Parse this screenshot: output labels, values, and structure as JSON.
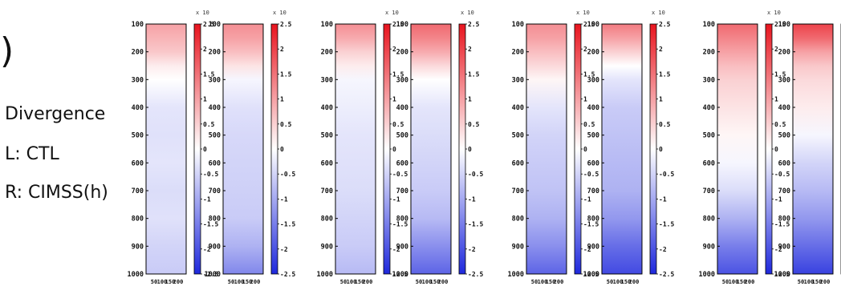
{
  "labels": {
    "panel_letter_fragment": ")",
    "line1": "Divergence",
    "line2": "L: CTL",
    "line3": "R: CIMSS(h)"
  },
  "chart_data": {
    "type": "heatmap",
    "description_axes": {
      "y_ticks": [
        "100",
        "200",
        "300",
        "400",
        "500",
        "600",
        "700",
        "800",
        "900",
        "1000"
      ],
      "x_ticks": [
        "50",
        "100",
        "150",
        "200"
      ],
      "ylim": [
        1000,
        100
      ]
    },
    "colorbar": {
      "ticks": [
        "2.5",
        "2",
        "1.5",
        "1",
        "0.5",
        "0",
        "-0.5",
        "-1",
        "-1.5",
        "-2",
        "-2.5"
      ],
      "exponent_label": "x 10",
      "range": [
        -2.5,
        2.5
      ],
      "colors": {
        "positive": "#e8141e",
        "neutral": "#ffffff",
        "negative": "#1e28dc"
      }
    },
    "panels": [
      {
        "name": "CTL",
        "profile": [
          [
            100,
            1.0
          ],
          [
            150,
            0.8
          ],
          [
            200,
            0.6
          ],
          [
            250,
            0.2
          ],
          [
            300,
            0.0
          ],
          [
            400,
            -0.3
          ],
          [
            500,
            -0.35
          ],
          [
            600,
            -0.3
          ],
          [
            700,
            -0.4
          ],
          [
            800,
            -0.35
          ],
          [
            900,
            -0.5
          ],
          [
            1000,
            -0.6
          ]
        ]
      },
      {
        "name": "CIMSS(h)",
        "profile": [
          [
            100,
            1.2
          ],
          [
            150,
            1.0
          ],
          [
            200,
            0.7
          ],
          [
            250,
            0.3
          ],
          [
            300,
            -0.1
          ],
          [
            400,
            -0.35
          ],
          [
            500,
            -0.45
          ],
          [
            600,
            -0.5
          ],
          [
            700,
            -0.55
          ],
          [
            800,
            -0.6
          ],
          [
            900,
            -0.9
          ],
          [
            1000,
            -1.4
          ]
        ]
      },
      {
        "name": "CTL",
        "profile": [
          [
            100,
            1.2
          ],
          [
            150,
            0.9
          ],
          [
            200,
            0.5
          ],
          [
            250,
            0.2
          ],
          [
            300,
            -0.1
          ],
          [
            400,
            -0.2
          ],
          [
            500,
            -0.3
          ],
          [
            600,
            -0.35
          ],
          [
            700,
            -0.4
          ],
          [
            800,
            -0.5
          ],
          [
            900,
            -0.6
          ],
          [
            1000,
            -0.8
          ]
        ]
      },
      {
        "name": "CIMSS(h)",
        "profile": [
          [
            100,
            1.6
          ],
          [
            150,
            1.3
          ],
          [
            200,
            0.9
          ],
          [
            250,
            0.4
          ],
          [
            300,
            0.0
          ],
          [
            400,
            -0.3
          ],
          [
            500,
            -0.4
          ],
          [
            600,
            -0.5
          ],
          [
            700,
            -0.6
          ],
          [
            800,
            -0.8
          ],
          [
            900,
            -1.3
          ],
          [
            1000,
            -1.8
          ]
        ]
      },
      {
        "name": "CTL",
        "profile": [
          [
            100,
            1.2
          ],
          [
            150,
            1.0
          ],
          [
            200,
            0.7
          ],
          [
            250,
            0.4
          ],
          [
            300,
            0.1
          ],
          [
            400,
            -0.3
          ],
          [
            500,
            -0.5
          ],
          [
            600,
            -0.6
          ],
          [
            700,
            -0.7
          ],
          [
            800,
            -0.9
          ],
          [
            900,
            -1.3
          ],
          [
            1000,
            -1.8
          ]
        ]
      },
      {
        "name": "CIMSS(h)",
        "profile": [
          [
            100,
            1.4
          ],
          [
            150,
            1.0
          ],
          [
            200,
            0.5
          ],
          [
            250,
            0.0
          ],
          [
            300,
            -0.3
          ],
          [
            400,
            -0.6
          ],
          [
            500,
            -0.7
          ],
          [
            600,
            -0.8
          ],
          [
            700,
            -0.9
          ],
          [
            800,
            -1.2
          ],
          [
            900,
            -1.7
          ],
          [
            1000,
            -2.1
          ]
        ]
      },
      {
        "name": "CTL",
        "profile": [
          [
            100,
            1.6
          ],
          [
            150,
            1.3
          ],
          [
            200,
            1.0
          ],
          [
            250,
            0.7
          ],
          [
            300,
            0.5
          ],
          [
            400,
            0.3
          ],
          [
            500,
            0.1
          ],
          [
            600,
            -0.1
          ],
          [
            700,
            -0.4
          ],
          [
            800,
            -0.9
          ],
          [
            900,
            -1.5
          ],
          [
            1000,
            -2.0
          ]
        ]
      },
      {
        "name": "CIMSS(h)",
        "profile": [
          [
            100,
            2.0
          ],
          [
            150,
            1.6
          ],
          [
            200,
            1.0
          ],
          [
            250,
            0.6
          ],
          [
            300,
            0.4
          ],
          [
            400,
            0.2
          ],
          [
            500,
            -0.1
          ],
          [
            600,
            -0.5
          ],
          [
            700,
            -0.8
          ],
          [
            800,
            -1.2
          ],
          [
            900,
            -1.7
          ],
          [
            1000,
            -2.2
          ]
        ]
      }
    ]
  }
}
